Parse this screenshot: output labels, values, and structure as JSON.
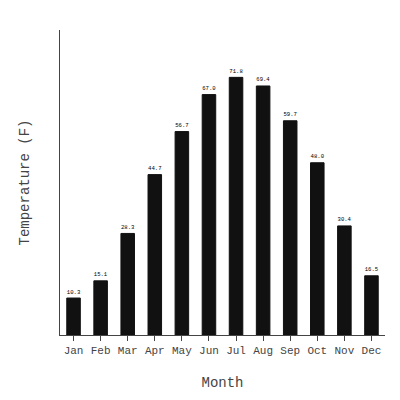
{
  "chart_data": {
    "type": "bar",
    "categories": [
      "Jan",
      "Feb",
      "Mar",
      "Apr",
      "May",
      "Jun",
      "Jul",
      "Aug",
      "Sep",
      "Oct",
      "Nov",
      "Dec"
    ],
    "values": [
      10.3,
      15.1,
      28.3,
      44.7,
      56.7,
      67.0,
      71.8,
      69.4,
      59.7,
      48.0,
      30.4,
      16.5
    ],
    "value_labels": [
      "10.3",
      "15.1",
      "28.3",
      "44.7",
      "56.7",
      "67.0",
      "71.8",
      "69.4",
      "59.7",
      "48.0",
      "30.4",
      "16.5"
    ],
    "color": "#111111",
    "xlabel": "Month",
    "ylabel": "Temperature (F)",
    "ylim": [
      0,
      85
    ],
    "data_labels": true,
    "tick_labels": "x",
    "grid": false
  }
}
